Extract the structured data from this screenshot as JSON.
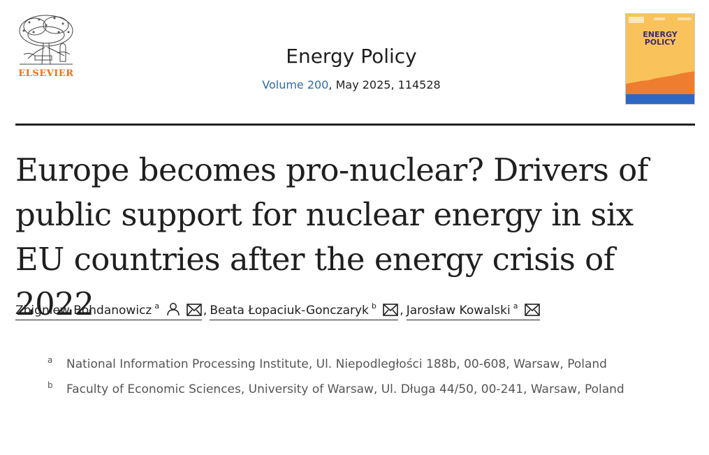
{
  "publisher": {
    "name": "ELSEVIER"
  },
  "journal": {
    "name": "Energy Policy",
    "volume_link": "Volume 200",
    "citation_rest": ", May 2025, 114528",
    "cover_title": "ENERGY\nPOLICY"
  },
  "article": {
    "title": "Europe becomes pro-nuclear? Drivers of public support for nuclear energy in six EU countries after the energy crisis of 2022"
  },
  "authors": [
    {
      "name": "Zbigniew Bohdanowicz",
      "affil": "a",
      "icons": [
        "person-icon",
        "envelope-icon"
      ]
    },
    {
      "name": "Beata Łopaciuk-Gonczaryk",
      "affil": "b",
      "icons": [
        "envelope-icon"
      ]
    },
    {
      "name": "Jarosław Kowalski",
      "affil": "a",
      "icons": [
        "envelope-icon"
      ]
    }
  ],
  "author_separator": ",",
  "affiliations": [
    {
      "label": "a",
      "text": "National Information Processing Institute, Ul. Niepodległości 188b, 00-608, Warsaw, Poland"
    },
    {
      "label": "b",
      "text": "Faculty of Economic Sciences, University of Warsaw, Ul. Długa 44/50, 00-241, Warsaw, Poland"
    }
  ],
  "colors": {
    "publisher_orange": "#e9711c",
    "link_blue": "#2e6da4",
    "cover_yellow": "#f9c25a",
    "cover_orange": "#ee7d2f",
    "cover_blue": "#2f68c4"
  }
}
